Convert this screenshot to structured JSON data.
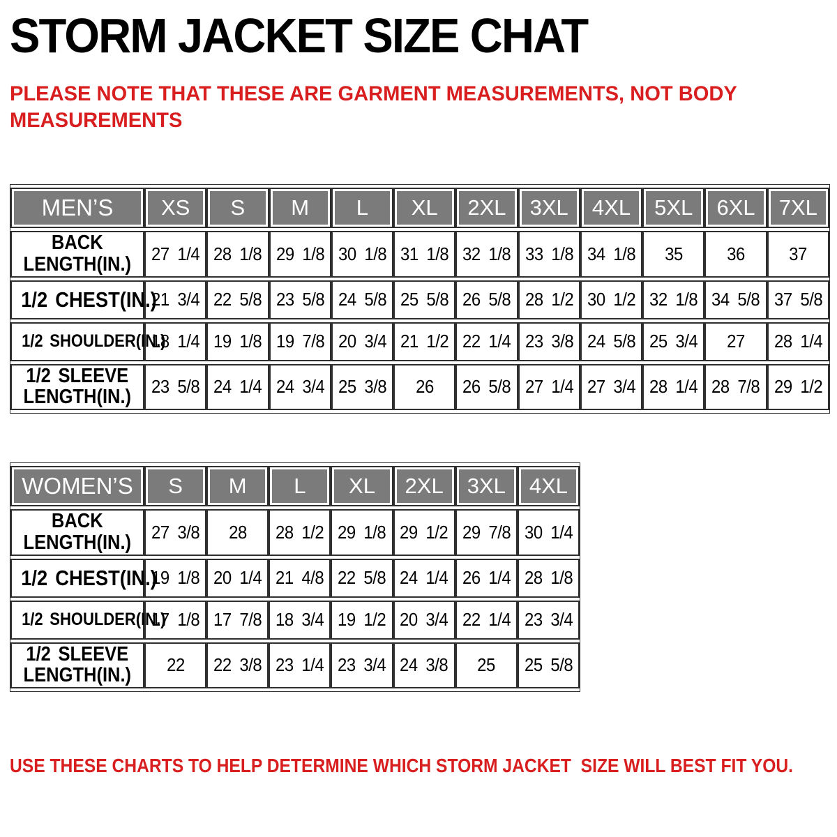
{
  "title": "STORM JACKET SIZE CHAT",
  "note_top_lines": [
    "PLEASE NOTE THAT THESE ARE GARMENT MEASUREMENTS, NOT BODY",
    "MEASUREMENTS"
  ],
  "note_bottom": "USE THESE CHARTS TO HELP DETERMINE WHICH STORM JACKET  SIZE WILL BEST FIT YOU.",
  "colors": {
    "red": "#d81e1e",
    "header_gray": "#7b7b7b",
    "border": "#2f2f2f",
    "header_text": "#ffffff",
    "body_text": "#000000"
  },
  "tables": {
    "men": {
      "header_label": "MEN’S",
      "sizes": [
        "XS",
        "S",
        "M",
        "L",
        "XL",
        "2XL",
        "3XL",
        "4XL",
        "5XL",
        "6XL",
        "7XL"
      ],
      "rows": [
        {
          "label_lines": [
            "BACK",
            "LENGTH(IN.)"
          ],
          "values": [
            "27 1/4",
            "28 1/8",
            "29 1/8",
            "30 1/8",
            "31 1/8",
            "32 1/8",
            "33 1/8",
            "34 1/8",
            "35",
            "36",
            "37"
          ]
        },
        {
          "label_lines": [
            "1/2 CHEST(IN.)"
          ],
          "values": [
            "21 3/4",
            "22 5/8",
            "23 5/8",
            "24 5/8",
            "25 5/8",
            "26 5/8",
            "28 1/2",
            "30 1/2",
            "32 1/8",
            "34 5/8",
            "37 5/8"
          ]
        },
        {
          "label_lines": [
            "1/2 SHOULDER(IN.)"
          ],
          "values": [
            "18 1/4",
            "19 1/8",
            "19 7/8",
            "20 3/4",
            "21 1/2",
            "22 1/4",
            "23 3/8",
            "24 5/8",
            "25 3/4",
            "27",
            "28 1/4"
          ]
        },
        {
          "label_lines": [
            "1/2 SLEEVE",
            "LENGTH(IN.)"
          ],
          "values": [
            "23 5/8",
            "24 1/4",
            "24 3/4",
            "25 3/8",
            "26",
            "26 5/8",
            "27 1/4",
            "27 3/4",
            "28 1/4",
            "28 7/8",
            "29 1/2"
          ]
        }
      ]
    },
    "women": {
      "header_label": "WOMEN’S",
      "sizes": [
        "S",
        "M",
        "L",
        "XL",
        "2XL",
        "3XL",
        "4XL"
      ],
      "rows": [
        {
          "label_lines": [
            "BACK",
            "LENGTH(IN.)"
          ],
          "values": [
            "27 3/8",
            "28",
            "28 1/2",
            "29 1/8",
            "29 1/2",
            "29 7/8",
            "30 1/4"
          ]
        },
        {
          "label_lines": [
            "1/2 CHEST(IN.)"
          ],
          "values": [
            "19 1/8",
            "20 1/4",
            "21 4/8",
            "22 5/8",
            "24 1/4",
            "26 1/4",
            "28 1/8"
          ]
        },
        {
          "label_lines": [
            "1/2 SHOULDER(IN.)"
          ],
          "values": [
            "17 1/8",
            "17 7/8",
            "18 3/4",
            "19 1/2",
            "20 3/4",
            "22 1/4",
            "23 3/4"
          ]
        },
        {
          "label_lines": [
            "1/2 SLEEVE",
            "LENGTH(IN.)"
          ],
          "values": [
            "22",
            "22 3/8",
            "23 1/4",
            "23 3/4",
            "24 3/8",
            "25",
            "25 5/8"
          ]
        }
      ]
    }
  }
}
